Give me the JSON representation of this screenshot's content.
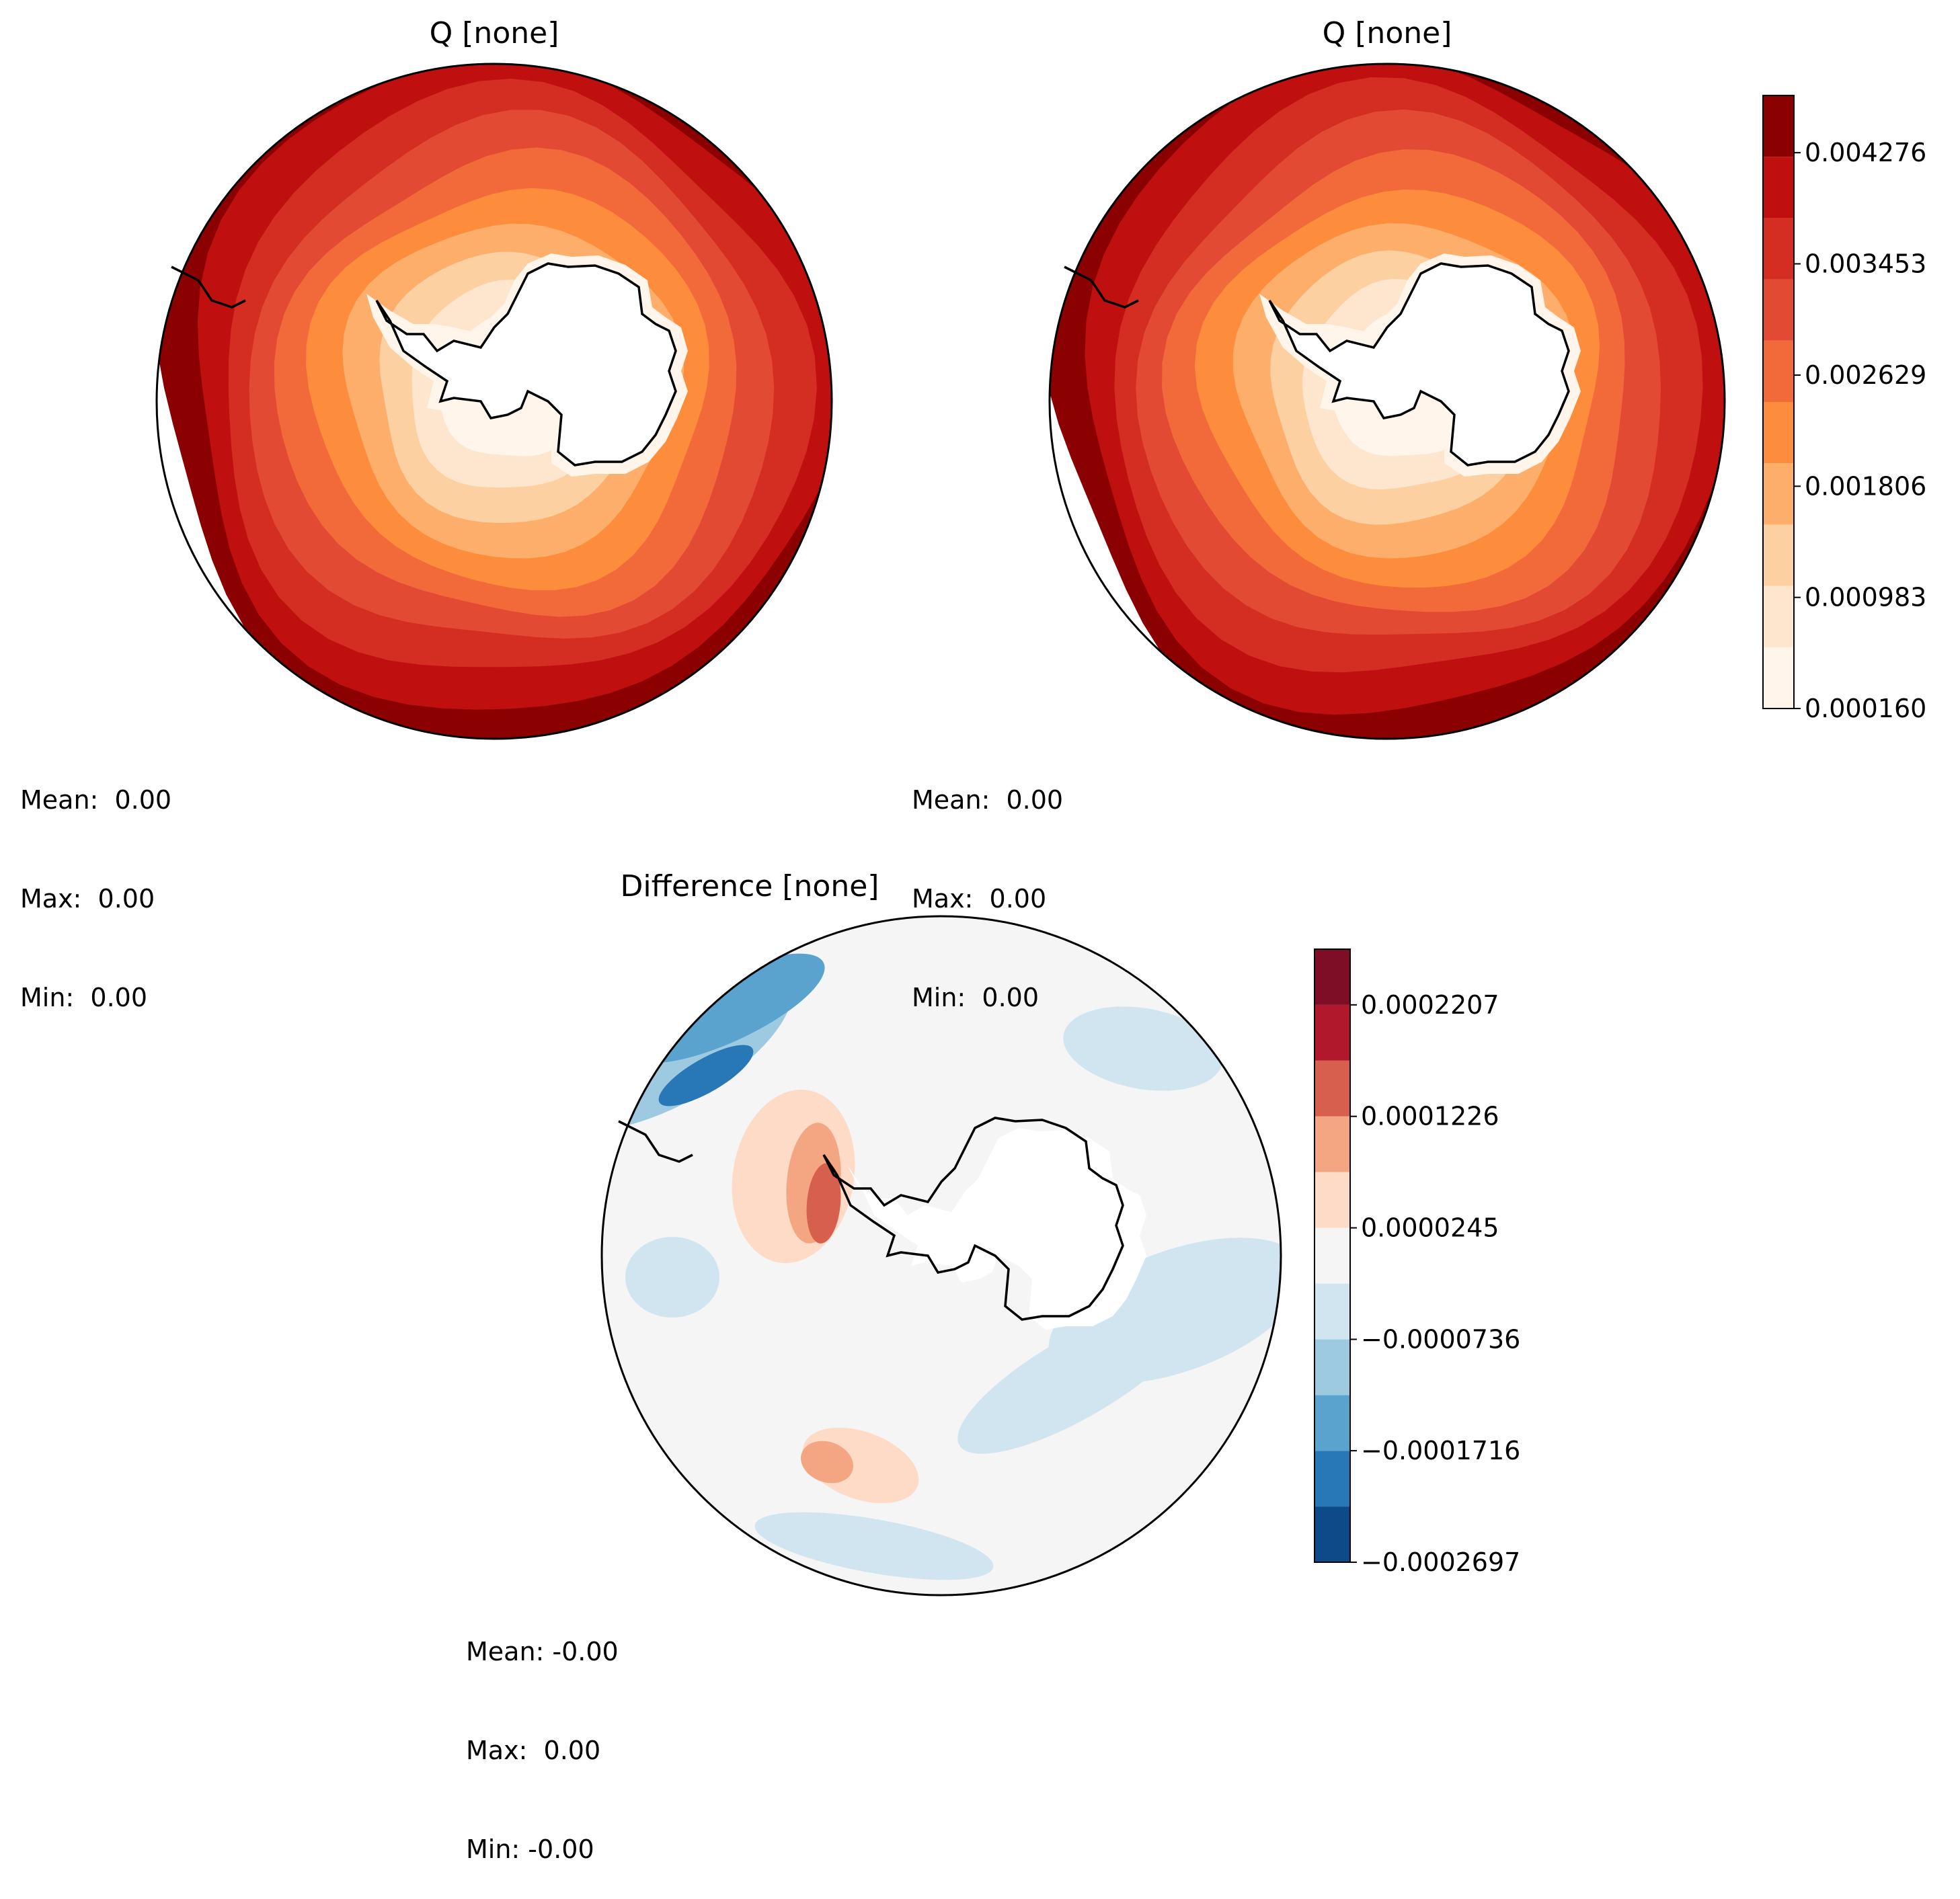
{
  "chart_data": [
    {
      "type": "heatmap",
      "projection": "south polar stereographic",
      "title": "Q [none]",
      "stats": {
        "mean": "Mean:  0.00",
        "max": "Max:  0.00",
        "min": "Min:  0.00"
      },
      "field": "concentric bands of Q increasing from the Antarctic coast (~0.0006) outward to the mid-latitude boundary (~0.0047)",
      "band_levels": [
        0.00016,
        0.000983,
        0.001806,
        0.002629,
        0.003453,
        0.004276,
        0.0047
      ]
    },
    {
      "type": "heatmap",
      "projection": "south polar stereographic",
      "title": "Q [none]",
      "stats": {
        "mean": "Mean:  0.00",
        "max": "Max:  0.00",
        "min": "Min:  0.00"
      },
      "field": "concentric bands of Q increasing from the Antarctic coast (~0.0006) outward to the mid-latitude boundary (~0.0047)",
      "band_levels": [
        0.00016,
        0.000983,
        0.001806,
        0.002629,
        0.003453,
        0.004276,
        0.0047
      ],
      "colorbar": {
        "colormap": "OrRd",
        "min": 0.00016,
        "max": 0.0047,
        "ticks": [
          "0.004276",
          "0.003453",
          "0.002629",
          "0.001806",
          "0.000983",
          "0.000160"
        ],
        "tick_values": [
          0.004276,
          0.003453,
          0.002629,
          0.001806,
          0.000983,
          0.00016
        ],
        "colors": [
          "#fff5eb",
          "#fee6ce",
          "#fdd0a2",
          "#fdae6b",
          "#fd8d3c",
          "#f26a3a",
          "#e24a33",
          "#d42d22",
          "#bf0f0f",
          "#8b0000"
        ]
      }
    },
    {
      "type": "heatmap",
      "projection": "south polar stereographic",
      "title": "Difference [none]",
      "stats": {
        "mean": "Mean: -0.00",
        "max": "Max:  0.00",
        "min": "Min: -0.00"
      },
      "field": "mostly near zero; positive anomalies near the Antarctic Peninsula (max ~0.00025) and negative anomalies in the South Pacific sector (min ~-0.00027)",
      "colorbar": {
        "colormap": "RdBu_r",
        "min": -0.0002697,
        "max": 0.0002697,
        "ticks": [
          "0.0002207",
          "0.0001226",
          "0.0000245",
          "−0.0000736",
          "−0.0001716",
          "−0.0002697"
        ],
        "tick_values": [
          0.0002207,
          0.0001226,
          2.45e-05,
          -7.36e-05,
          -0.0001716,
          -0.0002697
        ],
        "colors": [
          "#0d4a87",
          "#2878b8",
          "#5ba3cf",
          "#9ecae1",
          "#d1e5f0",
          "#f5f5f5",
          "#fddbc7",
          "#f4a582",
          "#d6604d",
          "#b2182b",
          "#7d0e25"
        ]
      }
    }
  ]
}
